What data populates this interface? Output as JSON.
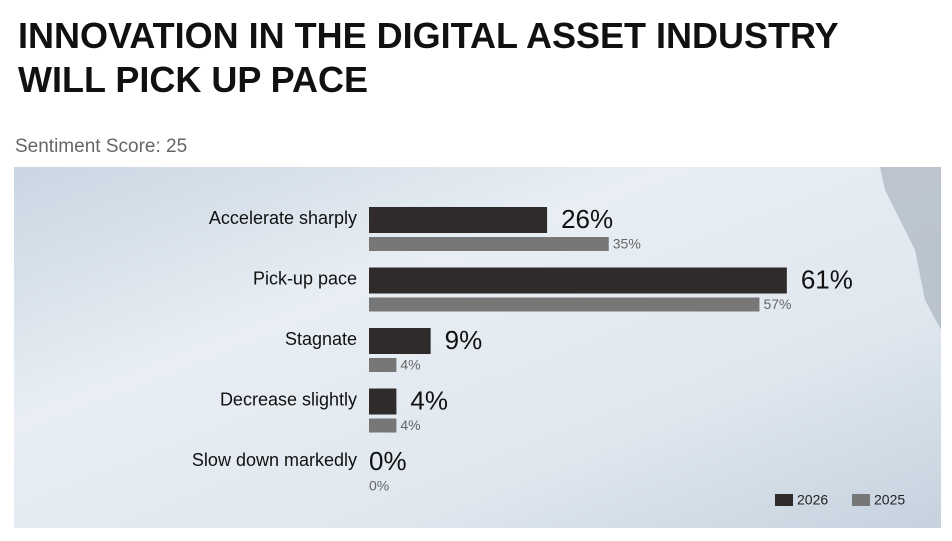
{
  "chart_data": {
    "type": "bar",
    "title": "INNOVATION IN THE DIGITAL ASSET INDUSTRY WILL PICK UP PACE",
    "subtitle": "Sentiment Score: 25",
    "categories": [
      "Accelerate sharply",
      "Pick-up pace",
      "Stagnate",
      "Decrease slightly",
      "Slow down markedly"
    ],
    "series": [
      {
        "name": "2026",
        "color": "#2f2b2b",
        "values": [
          26,
          61,
          9,
          4,
          0
        ],
        "value_labels": [
          "26%",
          "61%",
          "9%",
          "4%",
          "0%"
        ]
      },
      {
        "name": "2025",
        "color": "#777777",
        "values": [
          35,
          57,
          4,
          4,
          0
        ],
        "value_labels": [
          "35%",
          "57%",
          "4%",
          "4%",
          "0%"
        ]
      }
    ],
    "legend": "bottom-right"
  }
}
